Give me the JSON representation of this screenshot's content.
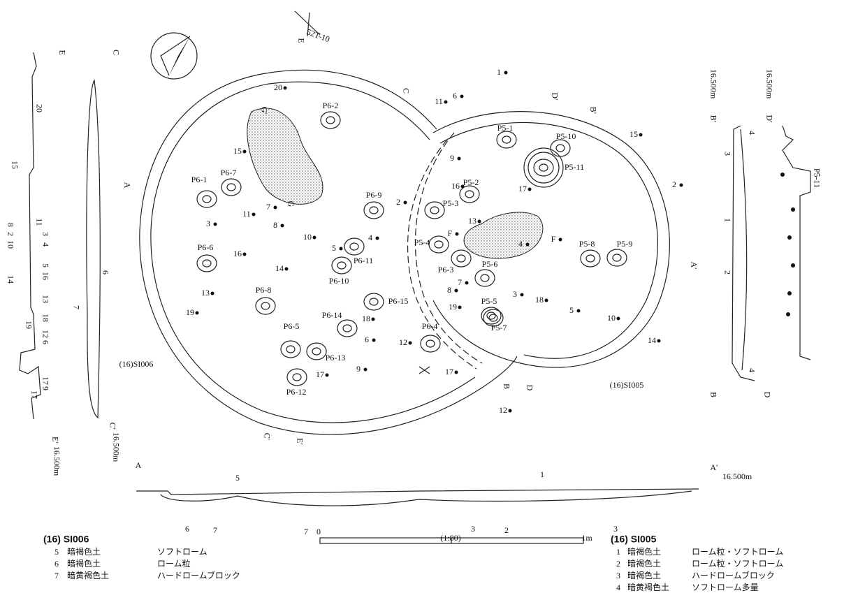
{
  "plan": {
    "grid_point": "52T-10",
    "site_labels": [
      "(16)SI006",
      "(16)SI005"
    ],
    "pits": [
      "P6-2",
      "P6-1",
      "P6-7",
      "P6-9",
      "P6-6",
      "P6-11",
      "P6-10",
      "P6-8",
      "P6-15",
      "P6-14",
      "P6-5",
      "P6-13",
      "P6-12",
      "P6-4",
      "P6-3",
      "P5-1",
      "P5-10",
      "P5-11",
      "P5-2",
      "P5-3",
      "P5-4",
      "P5-8",
      "P5-9",
      "P5-6",
      "P5-5",
      "P5-7"
    ],
    "layer_numbers": [
      "20",
      "15",
      "11",
      "7",
      "3",
      "8",
      "10",
      "16",
      "14",
      "13",
      "19",
      "5",
      "4",
      "18",
      "6",
      "12",
      "17",
      "9",
      "17",
      "11",
      "6",
      "1",
      "15",
      "2",
      "9",
      "16",
      "2",
      "13",
      "17",
      "4",
      "F",
      "F",
      "7",
      "8",
      "19",
      "3",
      "18",
      "5",
      "10",
      "14",
      "12"
    ],
    "section_points": [
      "E",
      "C",
      "D′",
      "B′",
      "A",
      "A′",
      "B",
      "D",
      "C′",
      "E′",
      "G′",
      "G"
    ]
  },
  "sections": {
    "left": [
      "E",
      "C",
      "20",
      "15",
      "11",
      "3",
      "4",
      "5",
      "16",
      "8",
      "2",
      "10",
      "14",
      "13",
      "18",
      "6",
      "12",
      "19",
      "17",
      "9",
      "17",
      "6",
      "7",
      "C′",
      "16.500m",
      "E′",
      "16.500m"
    ],
    "right": [
      "B′",
      "16.500m",
      "D′",
      "16.500m",
      "3",
      "1",
      "2",
      "4",
      "4",
      "B",
      "D",
      "P5-11"
    ],
    "bottom": [
      "A",
      "A′",
      "16.500m",
      "1",
      "5",
      "6",
      "7",
      "7",
      "3",
      "2",
      "3"
    ]
  },
  "legend_si006": {
    "title": "(16) SI006",
    "rows": [
      [
        "5",
        "暗褐色土",
        "ソフトローム"
      ],
      [
        "6",
        "暗褐色土",
        "ローム粒"
      ],
      [
        "7",
        "暗黄褐色土",
        "ハードロームブロック"
      ]
    ]
  },
  "legend_si005": {
    "title": "(16) SI005",
    "rows": [
      [
        "1",
        "暗褐色土",
        "ローム粒・ソフトローム"
      ],
      [
        "2",
        "暗褐色土",
        "ローム粒・ソフトローム"
      ],
      [
        "3",
        "暗褐色土",
        "ハードロームブロック"
      ],
      [
        "4",
        "暗黄褐色土",
        "ソフトローム多量"
      ]
    ]
  },
  "scale": {
    "start": "0",
    "ratio": "(1:80)",
    "end": "1m"
  }
}
